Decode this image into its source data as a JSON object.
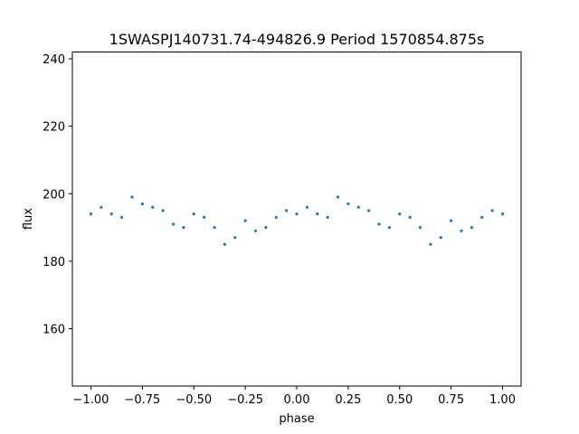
{
  "chart_data": {
    "type": "scatter",
    "title": "1SWASPJ140731.74-494826.9 Period 1570854.875s",
    "xlabel": "phase",
    "ylabel": "flux",
    "xlim": [
      -1.09,
      1.09
    ],
    "ylim": [
      143,
      242
    ],
    "xticks": [
      -1.0,
      -0.75,
      -0.5,
      -0.25,
      0.0,
      0.25,
      0.5,
      0.75,
      1.0
    ],
    "xtick_labels": [
      "−1.00",
      "−0.75",
      "−0.50",
      "−0.25",
      "0.00",
      "0.25",
      "0.50",
      "0.75",
      "1.00"
    ],
    "yticks": [
      160,
      180,
      200,
      220,
      240
    ],
    "ytick_labels": [
      "160",
      "180",
      "200",
      "220",
      "240"
    ],
    "grid": false,
    "legend": false,
    "series": [
      {
        "color": "#1f77b4",
        "x": [
          -1.0,
          -0.95,
          -0.9,
          -0.85,
          -0.8,
          -0.75,
          -0.7,
          -0.65,
          -0.6,
          -0.55,
          -0.5,
          -0.45,
          -0.4,
          -0.35,
          -0.3,
          -0.25,
          -0.2,
          -0.15,
          -0.1,
          -0.05,
          0.0,
          0.05,
          0.1,
          0.15,
          0.2,
          0.25,
          0.3,
          0.35,
          0.4,
          0.45,
          0.5,
          0.55,
          0.6,
          0.65,
          0.7,
          0.75,
          0.8,
          0.85,
          0.9,
          0.95,
          1.0
        ],
        "y": [
          194,
          196,
          194,
          193,
          199,
          197,
          196,
          195,
          191,
          190,
          194,
          193,
          190,
          185,
          187,
          192,
          189,
          190,
          193,
          195,
          194,
          196,
          194,
          193,
          199,
          197,
          196,
          195,
          191,
          190,
          194,
          193,
          190,
          185,
          187,
          192,
          189,
          190,
          193,
          195,
          194
        ]
      }
    ]
  }
}
